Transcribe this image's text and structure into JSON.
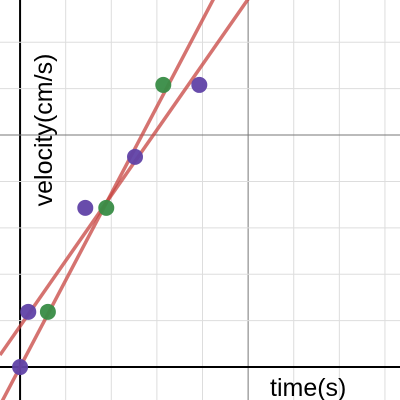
{
  "chart_data": {
    "type": "scatter",
    "x_label": "time(s)",
    "y_label": "velocity(cm/s)",
    "xlim": [
      -0.44,
      8.33
    ],
    "ylim": [
      -0.71,
      7.91
    ],
    "xticks": [
      0,
      1,
      2,
      3,
      4,
      5,
      6,
      7,
      8
    ],
    "yticks": [
      0,
      1,
      2,
      3,
      4,
      5,
      6,
      7
    ],
    "major_step": 5,
    "grid": true,
    "series": [
      {
        "color": "#6042a6",
        "x": [
          0,
          0.18,
          1.43,
          2.52,
          3.93
        ],
        "values": [
          0,
          1.19,
          3.43,
          4.53,
          6.08
        ]
      },
      {
        "color": "#388c46",
        "x": [
          0.61,
          1.89,
          3.14
        ],
        "values": [
          1.19,
          3.43,
          6.08
        ]
      }
    ],
    "fit_lines": [
      {
        "color": "#c74440",
        "slope": 1.87,
        "intercept": 0
      },
      {
        "color": "#c74440",
        "slope": 1.41,
        "intercept": 0.88
      }
    ]
  }
}
